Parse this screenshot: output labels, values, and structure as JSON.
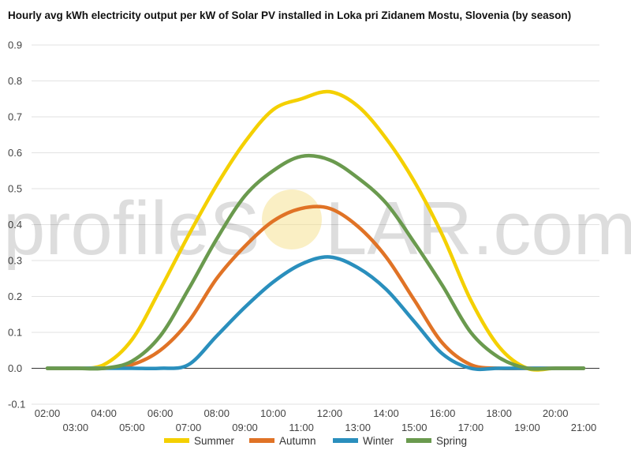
{
  "chart_data": {
    "type": "line",
    "title": "Hourly avg kWh electricity output per kW of Solar PV installed in Loka pri Zidanem Mostu, Slovenia (by season)",
    "xlabel": "",
    "ylabel": "",
    "categories": [
      "02:00",
      "03:00",
      "04:00",
      "05:00",
      "06:00",
      "07:00",
      "08:00",
      "09:00",
      "10:00",
      "11:00",
      "12:00",
      "13:00",
      "14:00",
      "15:00",
      "16:00",
      "17:00",
      "18:00",
      "19:00",
      "20:00",
      "21:00"
    ],
    "x_tick_labels_top": [
      "02:00",
      "04:00",
      "06:00",
      "08:00",
      "10:00",
      "12:00",
      "14:00",
      "16:00",
      "18:00",
      "20:00"
    ],
    "x_tick_labels_bottom": [
      "03:00",
      "05:00",
      "07:00",
      "09:00",
      "11:00",
      "13:00",
      "15:00",
      "17:00",
      "19:00",
      "21:00"
    ],
    "ylim": [
      -0.1,
      0.9
    ],
    "y_ticks": [
      "-0.1",
      "0.0",
      "0.1",
      "0.2",
      "0.3",
      "0.4",
      "0.5",
      "0.6",
      "0.7",
      "0.8",
      "0.9"
    ],
    "grid": true,
    "legend_position": "bottom",
    "series": [
      {
        "name": "Summer",
        "color": "#f4d000",
        "values": [
          0,
          0,
          0.01,
          0.08,
          0.22,
          0.37,
          0.51,
          0.63,
          0.72,
          0.75,
          0.77,
          0.73,
          0.64,
          0.52,
          0.37,
          0.19,
          0.06,
          0,
          0,
          0
        ]
      },
      {
        "name": "Autumn",
        "color": "#e07326",
        "values": [
          0,
          0,
          0,
          0.01,
          0.05,
          0.13,
          0.25,
          0.34,
          0.41,
          0.445,
          0.445,
          0.395,
          0.31,
          0.19,
          0.07,
          0.01,
          0,
          0,
          0,
          0
        ]
      },
      {
        "name": "Winter",
        "color": "#2a8fbd",
        "values": [
          0,
          0,
          0,
          0,
          0,
          0.01,
          0.09,
          0.17,
          0.24,
          0.29,
          0.31,
          0.28,
          0.22,
          0.13,
          0.04,
          0,
          0,
          0,
          0,
          0
        ]
      },
      {
        "name": "Spring",
        "color": "#6a9a4e",
        "values": [
          0,
          0,
          0,
          0.02,
          0.09,
          0.22,
          0.36,
          0.48,
          0.55,
          0.59,
          0.58,
          0.53,
          0.46,
          0.35,
          0.23,
          0.1,
          0.03,
          0,
          0,
          0
        ]
      }
    ]
  },
  "watermark": {
    "text_left": "profileS",
    "text_right": "LAR.com"
  }
}
